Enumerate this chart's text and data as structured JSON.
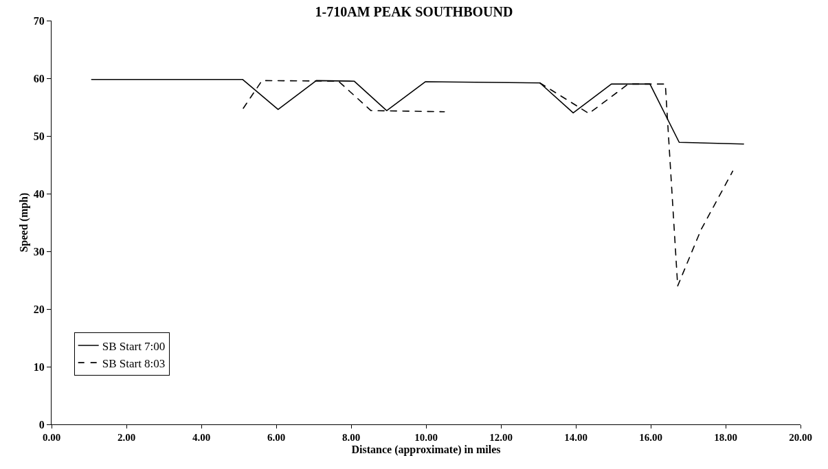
{
  "chart_data": {
    "type": "line",
    "title": "1-710AM PEAK SOUTHBOUND",
    "xlabel": "Distance (approximate) in miles",
    "ylabel": "Speed (mph)",
    "xlim": [
      0,
      20
    ],
    "xticks": [
      {
        "value": 0,
        "label": "0.00"
      },
      {
        "value": 2,
        "label": "2.00"
      },
      {
        "value": 4,
        "label": "4.00"
      },
      {
        "value": 6,
        "label": "6.00"
      },
      {
        "value": 8,
        "label": "8.00"
      },
      {
        "value": 10,
        "label": "10.00"
      },
      {
        "value": 12,
        "label": "12.00"
      },
      {
        "value": 14,
        "label": "14.00"
      },
      {
        "value": 16,
        "label": "16.00"
      },
      {
        "value": 18,
        "label": "18.00"
      },
      {
        "value": 20,
        "label": "20.00"
      }
    ],
    "ylim": [
      0,
      70
    ],
    "yticks": [
      0,
      10,
      20,
      30,
      40,
      50,
      60,
      70
    ],
    "grid": false,
    "legend": "bottom left",
    "marker": "none",
    "series": [
      {
        "name": "SB Start 7:00",
        "color": "#000000",
        "line_style": "solid",
        "x": [
          1.07,
          5.1,
          6.05,
          7.07,
          8.08,
          8.95,
          9.98,
          13.04,
          13.93,
          14.95,
          15.98,
          16.76,
          18.48
        ],
        "values": [
          59.8,
          59.8,
          54.6,
          59.6,
          59.5,
          54.4,
          59.4,
          59.2,
          54.0,
          59.0,
          59.0,
          48.9,
          48.6
        ]
      },
      {
        "name": "SB Start 8:03",
        "color": "#000000",
        "line_style": "dashed",
        "x": [
          5.12,
          5.62,
          7.66,
          8.53,
          10.49,
          11.8,
          13.04,
          14.35,
          15.4,
          16.39,
          16.72,
          17.34,
          18.19
        ],
        "values": [
          54.8,
          59.6,
          59.5,
          54.4,
          54.2,
          null,
          59.2,
          53.9,
          59.0,
          59.0,
          24.0,
          33.7,
          43.9
        ]
      }
    ]
  }
}
